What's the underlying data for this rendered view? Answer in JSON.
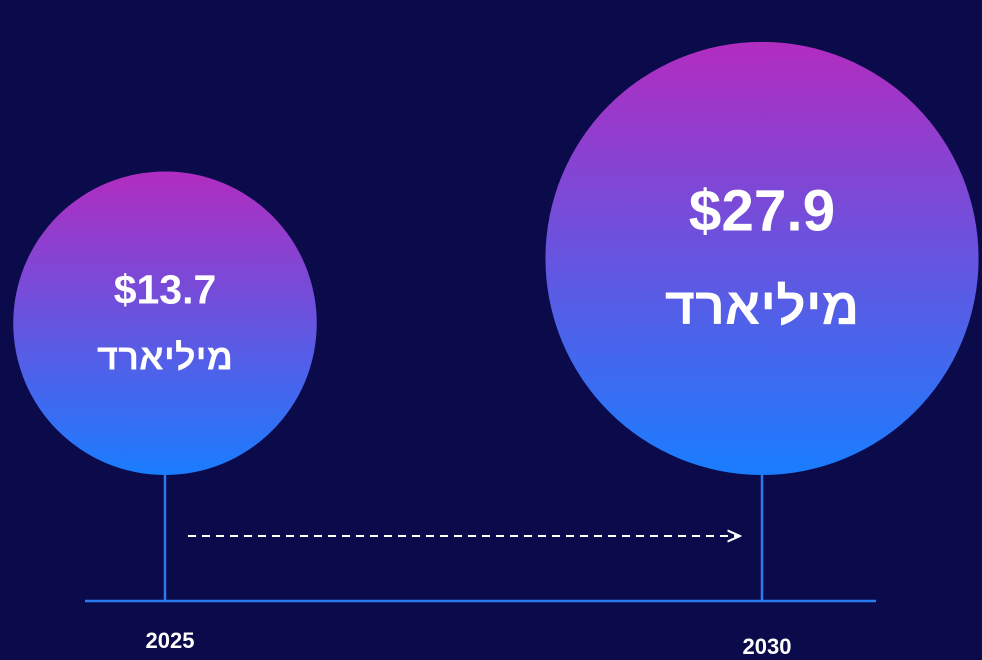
{
  "chart_data": {
    "type": "bubble",
    "categories": [
      "2025",
      "2030"
    ],
    "values": [
      13.7,
      27.9
    ],
    "value_labels": [
      "$13.7",
      "$27.9"
    ],
    "unit": "מיליארד",
    "colors": [
      "#b22cc0",
      "#1a7dff"
    ]
  }
}
